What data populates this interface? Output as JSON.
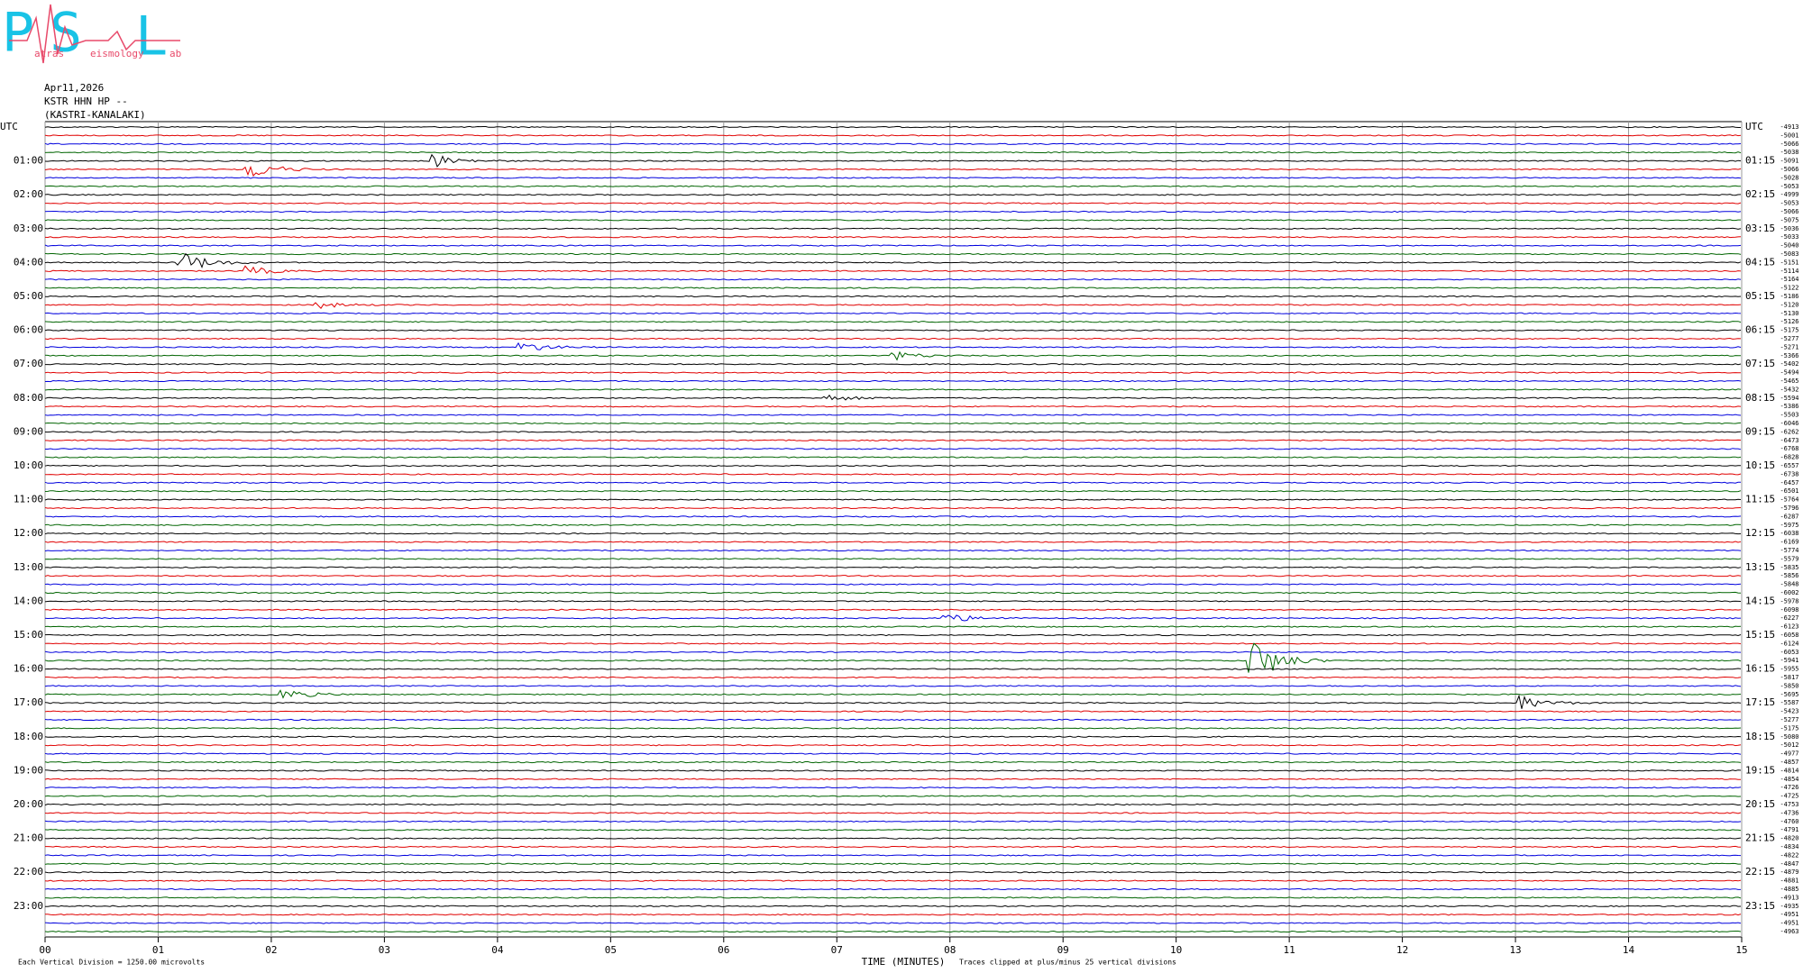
{
  "logo": {
    "letters": [
      "P",
      "S",
      "L"
    ],
    "words": [
      "atras",
      "eismology",
      "ab"
    ]
  },
  "header": {
    "date": "Apr11,2026",
    "station": "KSTR HHN HP --",
    "location": "(KASTRI-KANALAKI)"
  },
  "left_labels": [
    "UTC",
    "01:00",
    "02:00",
    "03:00",
    "04:00",
    "05:00",
    "06:00",
    "07:00",
    "08:00",
    "09:00",
    "10:00",
    "11:00",
    "12:00",
    "13:00",
    "14:00",
    "15:00",
    "16:00",
    "17:00",
    "18:00",
    "19:00",
    "20:00",
    "21:00",
    "22:00",
    "23:00"
  ],
  "right_labels": [
    "UTC",
    "01:15",
    "02:15",
    "03:15",
    "04:15",
    "05:15",
    "06:15",
    "07:15",
    "08:15",
    "09:15",
    "10:15",
    "11:15",
    "12:15",
    "13:15",
    "14:15",
    "15:15",
    "16:15",
    "17:15",
    "18:15",
    "19:15",
    "20:15",
    "21:15",
    "22:15",
    "23:15"
  ],
  "trace_offsets": [
    -4913,
    -5001,
    -5066,
    -5038,
    -5091,
    -5066,
    -5028,
    -5053,
    -4999,
    -5053,
    -5066,
    -5075,
    -5036,
    -5033,
    -5040,
    -5083,
    -5151,
    -5114,
    -5164,
    -5122,
    -5186,
    -5120,
    -5130,
    -5126,
    -5175,
    -5277,
    -5271,
    -5366,
    -5402,
    -5494,
    -5465,
    -5432,
    -5594,
    -5386,
    -5503,
    -6046,
    -6262,
    -6473,
    -6768,
    -6828,
    -6557,
    -6738,
    -6457,
    -6501,
    -5764,
    -5796,
    -6287,
    -5975,
    -6038,
    -6169,
    -5774,
    -5579,
    -5835,
    -5856,
    -5848,
    -6002,
    -5978,
    -6098,
    -6227,
    -6123,
    -6058,
    -6124,
    -6053,
    -5941,
    -5955,
    -5817,
    -5850,
    -5695,
    -5587,
    -5423,
    -5277,
    -5175,
    -5080,
    -5012,
    -4977,
    -4857,
    -4814,
    -4854,
    -4726,
    -4725,
    -4753,
    -4736,
    -4760,
    -4791,
    -4820,
    -4834,
    -4822,
    -4847,
    -4879,
    -4881,
    -4885,
    -4913,
    -4935,
    -4951,
    -4951,
    -4963
  ],
  "trace_colors": [
    "#000000",
    "#e00000",
    "#0000dd",
    "#006400"
  ],
  "x_axis": {
    "ticks": [
      "00",
      "01",
      "02",
      "03",
      "04",
      "05",
      "06",
      "07",
      "08",
      "09",
      "10",
      "11",
      "12",
      "13",
      "14",
      "15"
    ],
    "title": "TIME (MINUTES)"
  },
  "footer": {
    "scale": "Each Vertical Division = 1250.00 microvolts",
    "clip": "Traces clipped at plus/minus 25 vertical divisions"
  }
}
